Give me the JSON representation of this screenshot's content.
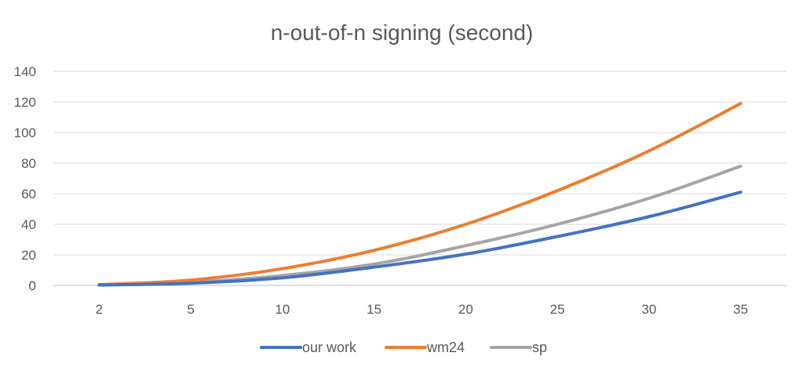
{
  "chart_data": {
    "type": "line",
    "title": "n-out-of-n signing (second)",
    "xlabel": "",
    "ylabel": "",
    "categories": [
      "2",
      "5",
      "10",
      "15",
      "20",
      "25",
      "30",
      "35"
    ],
    "ylim": [
      0,
      140
    ],
    "yticks": [
      0,
      20,
      40,
      60,
      80,
      100,
      120,
      140
    ],
    "grid": true,
    "legend_position": "bottom",
    "series": [
      {
        "name": "our work",
        "color": "#4472c4",
        "values": [
          0.3,
          1.5,
          5,
          12,
          20.5,
          32,
          45,
          61
        ]
      },
      {
        "name": "wm24",
        "color": "#ed7d31",
        "values": [
          0.5,
          3.5,
          11,
          23,
          40,
          62,
          88,
          119
        ]
      },
      {
        "name": "sp",
        "color": "#a5a5a5",
        "values": [
          0.3,
          2,
          6.5,
          14,
          26,
          40,
          57,
          78
        ]
      }
    ]
  }
}
